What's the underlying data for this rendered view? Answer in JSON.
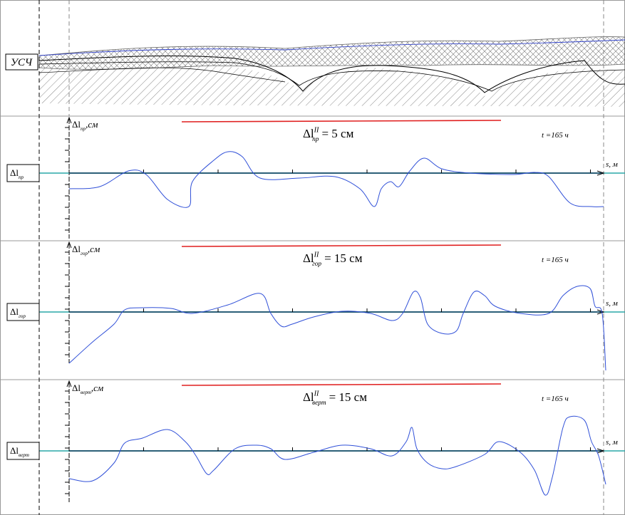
{
  "section_label": "УСЧ",
  "panels": [
    {
      "row_label": {
        "symbol": "Δl",
        "sub": "пр"
      },
      "axis_label": {
        "symbol": "Δl",
        "sub": "пр",
        "unit": ",см"
      },
      "limit": {
        "symbol": "Δl",
        "sub": "пр",
        "sup": "II",
        "value": "= 5 см"
      },
      "time": "t =165 ч",
      "x_axis_label": "s, м"
    },
    {
      "row_label": {
        "symbol": "Δl",
        "sub": "гор"
      },
      "axis_label": {
        "symbol": "Δl",
        "sub": "гор",
        "unit": ",см"
      },
      "limit": {
        "symbol": "Δl",
        "sub": "гор",
        "sup": "II",
        "value": "= 15 см"
      },
      "time": "t =165 ч",
      "x_axis_label": "s, м"
    },
    {
      "row_label": {
        "symbol": "Δl",
        "sub": "верт"
      },
      "axis_label": {
        "symbol": "Δl",
        "sub": "верт",
        "unit": ",см"
      },
      "limit": {
        "symbol": "Δl",
        "sub": "верт",
        "sup": "II",
        "value": "= 15 см"
      },
      "time": "t =165 ч",
      "x_axis_label": "s, м"
    }
  ]
}
